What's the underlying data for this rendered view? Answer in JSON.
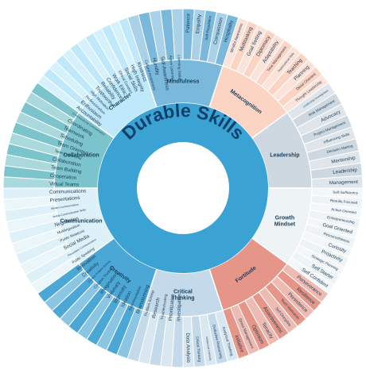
{
  "title": "Durable Skills",
  "categories": [
    {
      "name": "Character",
      "color": "#bfe9fb",
      "skills": [
        "Accountability",
        "Enthusiasm",
        "Professionalism",
        "High Motivation",
        "Trustworthy",
        "Reliability",
        "Confidence",
        "Work Ethic",
        "Ethical Conduct",
        "Social Skills",
        "High Integrity",
        "Kindness"
      ]
    },
    {
      "name": "Mindfulness",
      "color": "#7ab8dc",
      "skills": [
        "Cultural Awareness",
        "Humility",
        "Self-Awareness",
        "Active Listening",
        "Listening Skills",
        "Patience",
        "Empathy",
        "Self-Regulation",
        "Compassion",
        "Hospitality"
      ]
    },
    {
      "name": "Metacognition",
      "color": "#fbd4c4",
      "skills": [
        "Mindful Awareness",
        "Multitasking",
        "Goal Setting",
        "Diplomacy",
        "Adaptability",
        "Time Management",
        "Organizational Skills",
        "Teaching",
        "Planning",
        "Detail Oriented",
        "Thought Leadership"
      ]
    },
    {
      "name": "Leadership",
      "color": "#cdd8e0",
      "skills": [
        "Leadership Development",
        "Risk Management",
        "Advocacy",
        "Project Management",
        "Influencing Skills",
        "Decision Making",
        "Mentorship",
        "Leadership",
        "Management"
      ]
    },
    {
      "name": "Growth Mindset",
      "color": "#eef3f6",
      "skills": [
        "Self-Sufficiency",
        "Results Focused",
        "Action Oriented",
        "Entrepreneurship",
        "Goal Oriented",
        "Resourcefulness",
        "Curiosity",
        "Proactivity",
        "Strategic Planning",
        "Self Starter",
        "Self Confident"
      ]
    },
    {
      "name": "Fortitude",
      "color": "#e59688",
      "skills": [
        "Perseverance",
        "Resilience",
        "Persistence",
        "Team Motivation",
        "Self-Discipline",
        "Assertiveness",
        "Tenacity",
        "Optimism",
        "Stress Management",
        "Initiative"
      ]
    },
    {
      "name": "Critical Thinking",
      "color": "#c4daea",
      "skills": [
        "Analytical Thinking",
        "Deductive Reasoning",
        "Intellectual Curiosity",
        "Critical Thinking",
        "Data Analysis",
        "Investigation",
        "Prioritization",
        "Troubleshooting",
        "Research",
        "Problem Solving"
      ]
    },
    {
      "name": "Creativity",
      "color": "#4ba7d6",
      "skills": [
        "Brainstorming",
        "Experimentation",
        "Ideation",
        "Ingenuity",
        "Visionary",
        "Imagination",
        "Creative Thinking",
        "Creative Problem Solving",
        "Creativity",
        "Innovation"
      ]
    },
    {
      "name": "Communication",
      "color": "#dff1f8",
      "skills": [
        "Public Speaking",
        "Persuasive Communication",
        "Social Media",
        "Public Relations",
        "Multilingualism",
        "Negotiation",
        "Verbal Communication Skills",
        "Written Communication",
        "Presentations",
        "Communications"
      ]
    },
    {
      "name": "Collaboration",
      "color": "#7cc4cb",
      "skills": [
        "Virtual Teams",
        "Cooperation",
        "Team Building",
        "Collaboration",
        "Team Leadership",
        "Team Oriented",
        "Scheduling",
        "Teamwork",
        "Coordinating",
        "Cross-functional Communication"
      ]
    }
  ]
}
